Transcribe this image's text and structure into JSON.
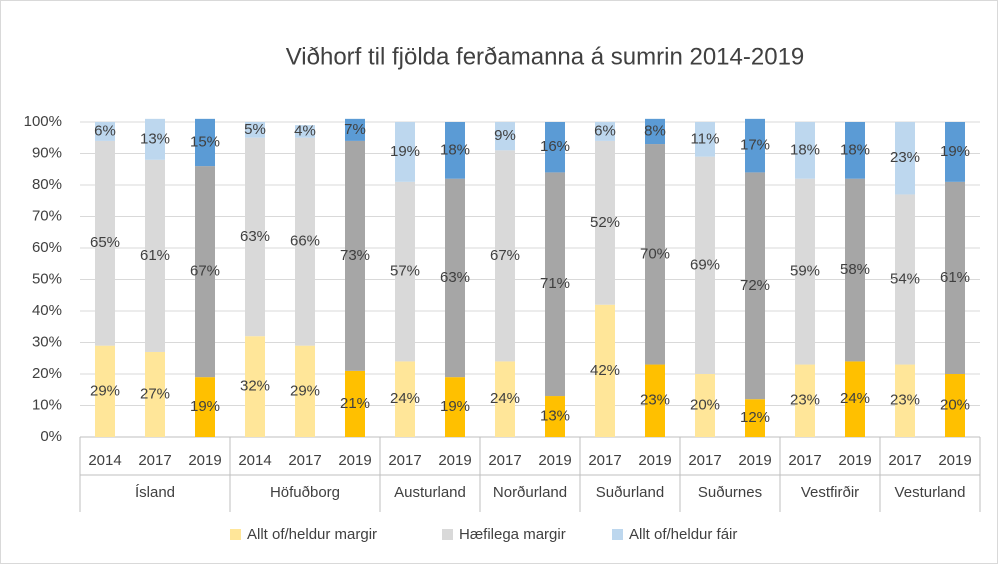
{
  "chart_data": {
    "type": "stacked_bar",
    "title": "Viðhorf til fjölda ferðamanna á sumrin 2014-2019",
    "groups": [
      {
        "name": "Ísland",
        "categories": [
          "2014",
          "2017",
          "2019"
        ]
      },
      {
        "name": "Höfuðborg",
        "categories": [
          "2014",
          "2017",
          "2019"
        ]
      },
      {
        "name": "Austurland",
        "categories": [
          "2017",
          "2019"
        ]
      },
      {
        "name": "Norðurland",
        "categories": [
          "2017",
          "2019"
        ]
      },
      {
        "name": "Suðurland",
        "categories": [
          "2017",
          "2019"
        ]
      },
      {
        "name": "Suðurnes",
        "categories": [
          "2017",
          "2019"
        ]
      },
      {
        "name": "Vestfirðir",
        "categories": [
          "2017",
          "2019"
        ]
      },
      {
        "name": "Vesturland",
        "categories": [
          "2017",
          "2019"
        ]
      }
    ],
    "series": [
      {
        "name": "Allt of/heldur margir",
        "color": "#FFE699",
        "colors": [
          "#FFE699",
          "#FFE699",
          "#FFC000",
          "#FFE699",
          "#FFE699",
          "#FFC000",
          "#FFE699",
          "#FFC000",
          "#FFE699",
          "#FFC000",
          "#FFE699",
          "#FFC000",
          "#FFE699",
          "#FFC000",
          "#FFE699",
          "#FFC000",
          "#FFE699",
          "#FFC000"
        ],
        "values": [
          29,
          27,
          19,
          32,
          29,
          21,
          24,
          19,
          24,
          13,
          42,
          23,
          20,
          12,
          23,
          24,
          23,
          20
        ],
        "value_labels": [
          "29%",
          "27%",
          "19%",
          "32%",
          "29%",
          "21%",
          "24%",
          "19%",
          "24%",
          "13%",
          "42%",
          "23%",
          "20%",
          "12%",
          "23%",
          "24%",
          "23%",
          "20%"
        ]
      },
      {
        "name": "Hæfilega margir",
        "color": "#D9D9D9",
        "colors": [
          "#D9D9D9",
          "#D9D9D9",
          "#A6A6A6",
          "#D9D9D9",
          "#D9D9D9",
          "#A6A6A6",
          "#D9D9D9",
          "#A6A6A6",
          "#D9D9D9",
          "#A6A6A6",
          "#D9D9D9",
          "#A6A6A6",
          "#D9D9D9",
          "#A6A6A6",
          "#D9D9D9",
          "#A6A6A6",
          "#D9D9D9",
          "#A6A6A6"
        ],
        "values": [
          65,
          61,
          67,
          63,
          66,
          73,
          57,
          63,
          67,
          71,
          52,
          70,
          69,
          72,
          59,
          58,
          54,
          61
        ],
        "value_labels": [
          "65%",
          "61%",
          "67%",
          "63%",
          "66%",
          "73%",
          "57%",
          "63%",
          "67%",
          "71%",
          "52%",
          "70%",
          "69%",
          "72%",
          "59%",
          "58%",
          "54%",
          "61%"
        ]
      },
      {
        "name": "Allt of/heldur fáir",
        "color": "#BDD7EE",
        "colors": [
          "#BDD7EE",
          "#BDD7EE",
          "#5B9BD5",
          "#BDD7EE",
          "#BDD7EE",
          "#5B9BD5",
          "#BDD7EE",
          "#5B9BD5",
          "#BDD7EE",
          "#5B9BD5",
          "#BDD7EE",
          "#5B9BD5",
          "#BDD7EE",
          "#5B9BD5",
          "#BDD7EE",
          "#5B9BD5",
          "#BDD7EE",
          "#5B9BD5"
        ],
        "values": [
          6,
          13,
          15,
          5,
          4,
          7,
          19,
          18,
          9,
          16,
          6,
          8,
          11,
          17,
          18,
          18,
          23,
          19
        ],
        "value_labels": [
          "6%",
          "13%",
          "15%",
          "5%",
          "4%",
          "7%",
          "19%",
          "18%",
          "9%",
          "16%",
          "6%",
          "8%",
          "11%",
          "17%",
          "18%",
          "18%",
          "23%",
          "19%"
        ]
      }
    ],
    "ylim": [
      0,
      100
    ],
    "yticks": [
      {
        "value": 0,
        "label": "0%"
      },
      {
        "value": 10,
        "label": "10%"
      },
      {
        "value": 20,
        "label": "20%"
      },
      {
        "value": 30,
        "label": "30%"
      },
      {
        "value": 40,
        "label": "40%"
      },
      {
        "value": 50,
        "label": "50%"
      },
      {
        "value": 60,
        "label": "60%"
      },
      {
        "value": 70,
        "label": "70%"
      },
      {
        "value": 80,
        "label": "80%"
      },
      {
        "value": 90,
        "label": "90%"
      },
      {
        "value": 100,
        "label": "100%"
      }
    ],
    "grid": true,
    "legend": "bottom"
  }
}
